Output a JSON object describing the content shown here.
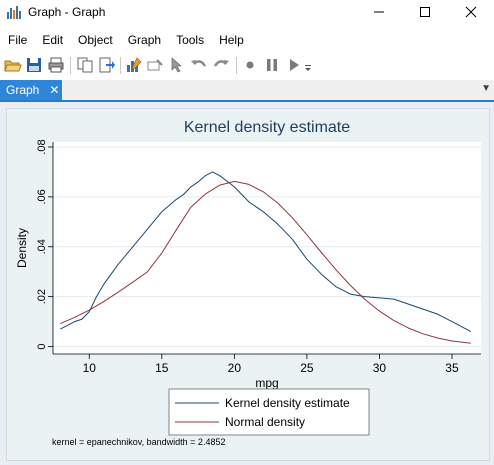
{
  "window": {
    "title": "Graph - Graph",
    "minimize_label": "—",
    "maximize_label": "☐",
    "close_label": "✕"
  },
  "menu": [
    "File",
    "Edit",
    "Object",
    "Graph",
    "Tools",
    "Help"
  ],
  "toolbar": {
    "icons": [
      "open-icon",
      "save-icon",
      "print-icon",
      "copy-icon",
      "paste-icon",
      "graph-editor-icon",
      "rename-icon",
      "pointer-icon",
      "undo-icon",
      "redo-icon",
      "record-icon",
      "pause-icon",
      "play-icon",
      "dropdown-icon"
    ]
  },
  "tabs": [
    {
      "label": "Graph",
      "close": "✕"
    }
  ],
  "tab_menu_glyph": "▼",
  "chart_data": {
    "type": "line",
    "title": "Kernel density estimate",
    "xlabel": "mpg",
    "ylabel": "Density",
    "xlim": [
      7.5,
      37
    ],
    "ylim": [
      -0.003,
      0.082
    ],
    "xticks": [
      10,
      15,
      20,
      25,
      30,
      35
    ],
    "yticks": [
      0,
      0.02,
      0.04,
      0.06,
      0.08
    ],
    "ytick_labels": [
      "0",
      ".02",
      ".04",
      ".06",
      ".08"
    ],
    "grid": true,
    "legend_position": "bottom",
    "note": "kernel = epanechnikov, bandwidth = 2.4852",
    "series": [
      {
        "name": "Kernel density estimate",
        "color": "#1a476f",
        "x": [
          8,
          9,
          9.5,
          10,
          10.5,
          11,
          12,
          13,
          14,
          15,
          16,
          16.5,
          17,
          17.5,
          18,
          18.5,
          19,
          20,
          21,
          22,
          23,
          24,
          25,
          26,
          27,
          28,
          29,
          30,
          31,
          32,
          33,
          34,
          35,
          36.3
        ],
        "y": [
          0.007,
          0.01,
          0.011,
          0.014,
          0.02,
          0.025,
          0.033,
          0.04,
          0.047,
          0.054,
          0.059,
          0.061,
          0.064,
          0.066,
          0.0685,
          0.07,
          0.0685,
          0.064,
          0.058,
          0.054,
          0.049,
          0.043,
          0.035,
          0.029,
          0.024,
          0.021,
          0.02,
          0.0195,
          0.019,
          0.017,
          0.015,
          0.013,
          0.01,
          0.006
        ]
      },
      {
        "name": "Normal density",
        "color": "#90353b",
        "x": [
          8,
          9,
          10,
          11,
          12,
          13,
          14,
          15,
          16,
          17,
          18,
          19,
          20,
          21,
          22,
          23,
          24,
          25,
          26,
          27,
          28,
          29,
          30,
          31,
          32,
          33,
          34,
          35,
          36.3
        ],
        "y": [
          0.0092,
          0.0117,
          0.0146,
          0.018,
          0.0218,
          0.0258,
          0.0299,
          0.0375,
          0.0468,
          0.0558,
          0.0611,
          0.0647,
          0.0662,
          0.065,
          0.062,
          0.0575,
          0.0516,
          0.0448,
          0.0377,
          0.0308,
          0.0245,
          0.0189,
          0.0142,
          0.0104,
          0.0074,
          0.0051,
          0.0034,
          0.0022,
          0.0013
        ]
      }
    ]
  }
}
